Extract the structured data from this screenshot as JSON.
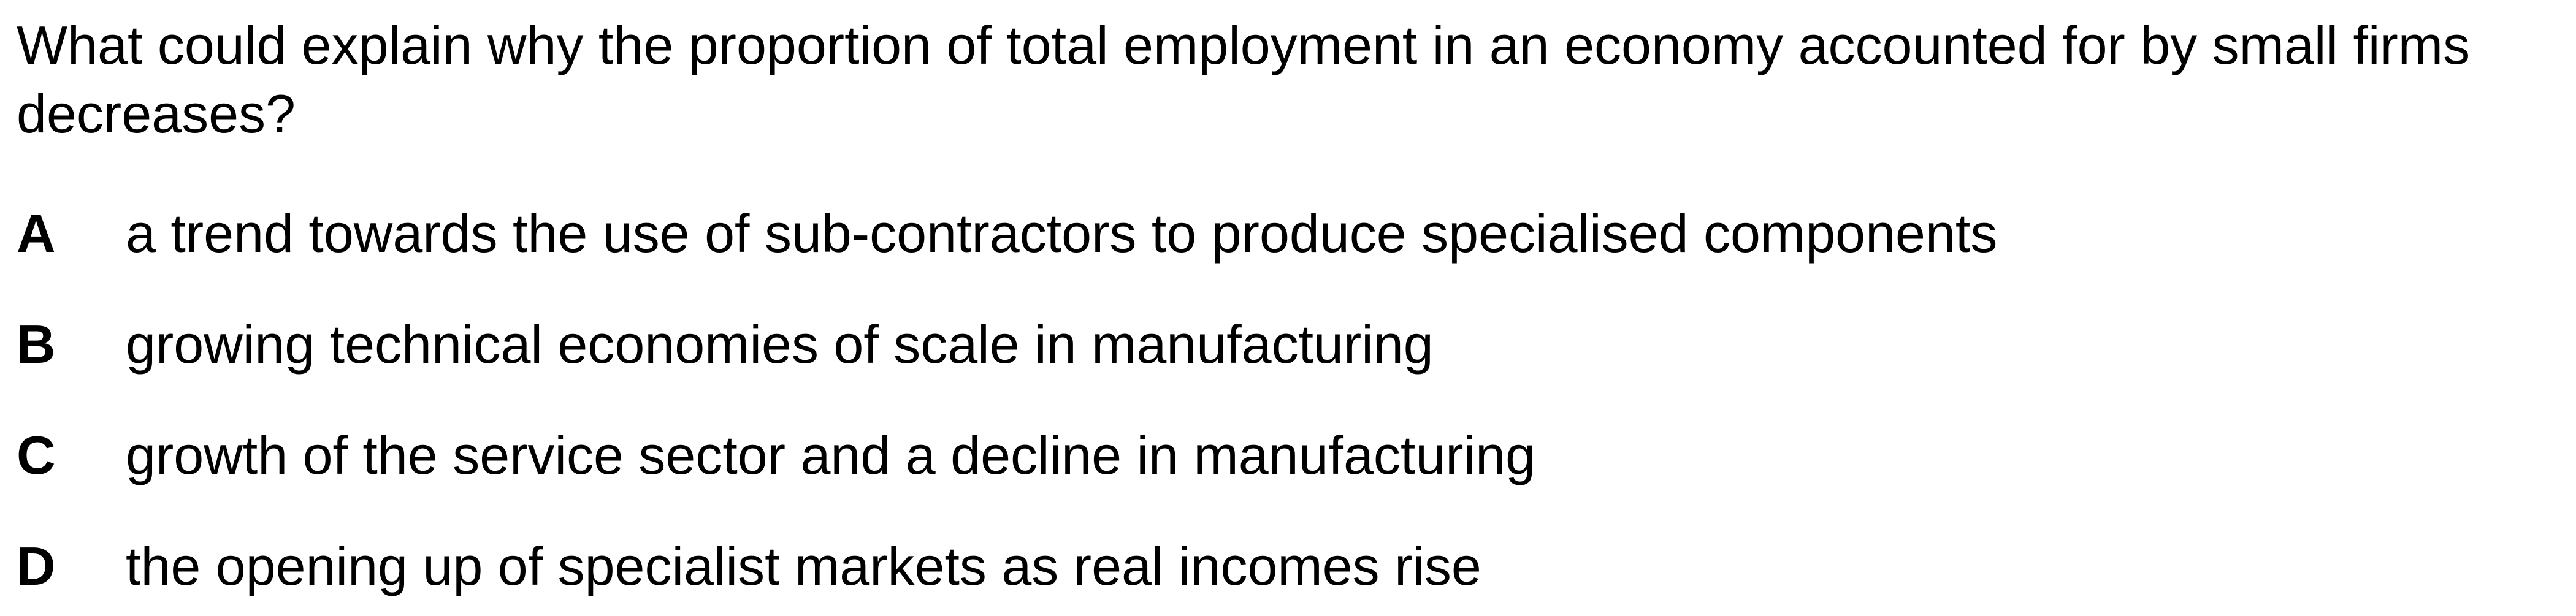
{
  "question": {
    "text": "What could explain why the proportion of total employment in an economy accounted for by small firms decreases?"
  },
  "options": [
    {
      "letter": "A",
      "text": "a trend towards the use of sub-contractors to produce specialised components"
    },
    {
      "letter": "B",
      "text": "growing technical economies of scale in manufacturing"
    },
    {
      "letter": "C",
      "text": "growth of the service sector and a decline in manufacturing"
    },
    {
      "letter": "D",
      "text": "the opening up of specialist markets as real incomes rise"
    }
  ]
}
